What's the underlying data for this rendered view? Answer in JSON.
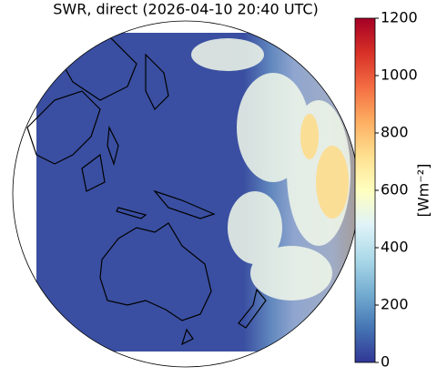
{
  "title": "SWR, direct (2026-04-10 20:40 UTC)",
  "colorbar": {
    "label": "[Wm⁻²]",
    "lim": [
      0,
      1200
    ],
    "ticks": [
      0,
      200,
      400,
      600,
      800,
      1000,
      1200
    ]
  }
}
